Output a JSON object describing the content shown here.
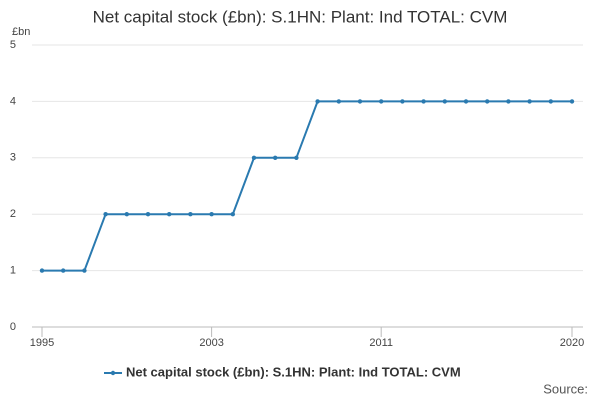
{
  "chart_data": {
    "type": "line",
    "title": "Net capital stock (£bn): S.1HN: Plant: Ind TOTAL: CVM",
    "y_label": "£bn",
    "x": [
      1995,
      1996,
      1997,
      1998,
      1999,
      2000,
      2001,
      2002,
      2003,
      2004,
      2005,
      2006,
      2007,
      2008,
      2009,
      2010,
      2011,
      2012,
      2013,
      2014,
      2015,
      2016,
      2017,
      2018,
      2019,
      2020
    ],
    "series": [
      {
        "name": "Net capital stock (£bn): S.1HN: Plant: Ind TOTAL: CVM",
        "color": "#2a7ab0",
        "values": [
          1,
          1,
          1,
          2,
          2,
          2,
          2,
          2,
          2,
          2,
          3,
          3,
          3,
          4,
          4,
          4,
          4,
          4,
          4,
          4,
          4,
          4,
          4,
          4,
          4,
          4
        ]
      }
    ],
    "xlim": [
      1995,
      2020
    ],
    "xticks": [
      1995,
      2003,
      2011,
      2020
    ],
    "ylim": [
      0,
      5
    ],
    "yticks": [
      0,
      1,
      2,
      3,
      4,
      5
    ],
    "grid": true,
    "source": "Source:"
  }
}
